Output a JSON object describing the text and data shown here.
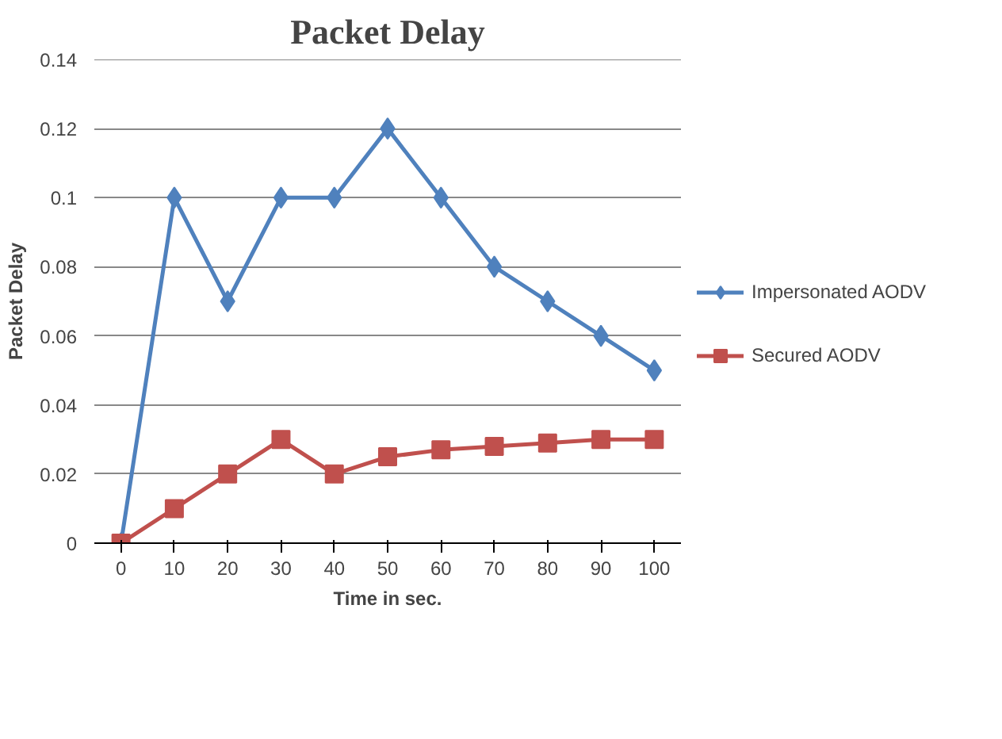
{
  "chart_data": {
    "type": "line",
    "title": "Packet Delay",
    "xlabel": "Time in sec.",
    "ylabel": "Packet Delay",
    "categories": [
      "0",
      "10",
      "20",
      "30",
      "40",
      "50",
      "60",
      "70",
      "80",
      "90",
      "100"
    ],
    "series": [
      {
        "name": "Impersonated AODV",
        "color": "#4f81bd",
        "marker": "diamond",
        "values": [
          0,
          0.1,
          0.07,
          0.1,
          0.1,
          0.12,
          0.1,
          0.08,
          0.07,
          0.06,
          0.05
        ]
      },
      {
        "name": "Secured AODV",
        "color": "#c0504d",
        "marker": "square",
        "values": [
          0,
          0.01,
          0.02,
          0.03,
          0.02,
          0.025,
          0.027,
          0.028,
          0.029,
          0.03,
          0.03
        ]
      }
    ],
    "ylim": [
      0,
      0.14
    ],
    "yticks": [
      0,
      0.02,
      0.04,
      0.06,
      0.08,
      0.1,
      0.12,
      0.14
    ],
    "grid": "y",
    "legend": "right"
  }
}
